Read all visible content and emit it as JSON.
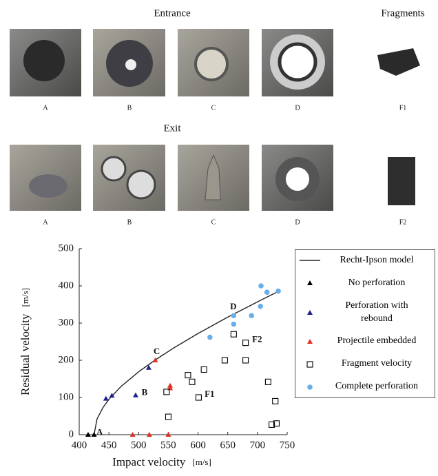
{
  "figure": {
    "entrance_title": "Entrance",
    "fragments_title": "Fragments",
    "exit_title": "Exit",
    "entrance_labels": [
      "A",
      "B",
      "C",
      "D",
      "F1"
    ],
    "exit_labels": [
      "A",
      "B",
      "C",
      "D",
      "F2"
    ]
  },
  "chart_data": {
    "type": "scatter",
    "xlabel": "Impact velocity",
    "xunit": "[m/s]",
    "ylabel": "Residual velocity",
    "yunit": "[m/s]",
    "xlim": [
      400,
      750
    ],
    "xticks": [
      400,
      450,
      500,
      550,
      600,
      650,
      700,
      750
    ],
    "ylim": [
      0,
      500
    ],
    "yticks": [
      0,
      100,
      200,
      300,
      400,
      500
    ],
    "series": [
      {
        "name": "Recht-Ipson model",
        "kind": "line",
        "color": "#222222",
        "x": [
          425,
          430,
          440,
          450,
          470,
          500,
          530,
          560,
          600,
          650,
          700,
          735
        ],
        "values": [
          0,
          42,
          73,
          95,
          129,
          169,
          203,
          234,
          272,
          316,
          357,
          385
        ]
      },
      {
        "name": "No perforation",
        "kind": "triangle",
        "color": "#000000",
        "x": [
          415,
          425
        ],
        "values": [
          0,
          0
        ]
      },
      {
        "name": "Perforation with rebound",
        "kind": "triangle",
        "color": "#1f1f8a",
        "x": [
          445,
          455,
          495,
          517
        ],
        "values": [
          97,
          105,
          106,
          180
        ]
      },
      {
        "name": "Projectile embedded",
        "kind": "triangle",
        "color": "#e03020",
        "x": [
          490,
          518,
          550,
          553,
          553,
          528
        ],
        "values": [
          0,
          0,
          0,
          125,
          132,
          200
        ]
      },
      {
        "name": "Fragment velocity",
        "kind": "square",
        "color": "#000000",
        "x": [
          547,
          550,
          583,
          590,
          601,
          610,
          645,
          660,
          680,
          680,
          718,
          724,
          730,
          732
        ],
        "values": [
          115,
          48,
          160,
          142,
          100,
          175,
          200,
          270,
          247,
          200,
          142,
          27,
          90,
          30
        ]
      },
      {
        "name": "Complete perforation",
        "kind": "circle",
        "color": "#6aaee8",
        "x": [
          620,
          660,
          660,
          690,
          705,
          706,
          716,
          735
        ],
        "values": [
          262,
          320,
          297,
          320,
          345,
          400,
          383,
          386
        ]
      }
    ],
    "annotations": [
      {
        "text": "A",
        "x": 429,
        "y": 5
      },
      {
        "text": "B",
        "x": 505,
        "y": 112
      },
      {
        "text": "C",
        "x": 525,
        "y": 222
      },
      {
        "text": "D",
        "x": 654,
        "y": 343
      },
      {
        "text": "F1",
        "x": 611,
        "y": 107
      },
      {
        "text": "F2",
        "x": 691,
        "y": 255
      }
    ]
  }
}
